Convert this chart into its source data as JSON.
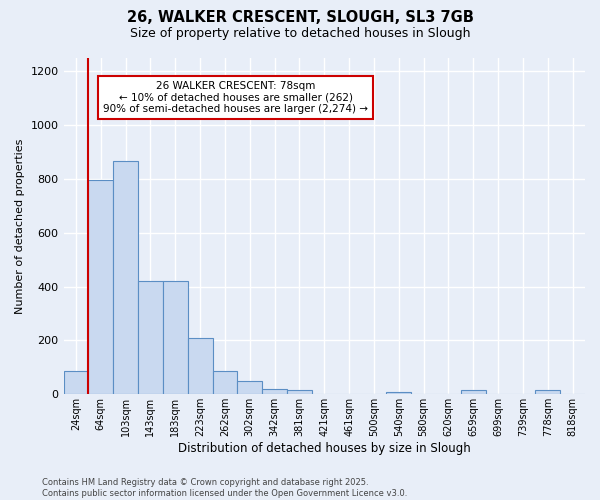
{
  "title": "26, WALKER CRESCENT, SLOUGH, SL3 7GB",
  "subtitle": "Size of property relative to detached houses in Slough",
  "xlabel": "Distribution of detached houses by size in Slough",
  "ylabel": "Number of detached properties",
  "bar_labels": [
    "24sqm",
    "64sqm",
    "103sqm",
    "143sqm",
    "183sqm",
    "223sqm",
    "262sqm",
    "302sqm",
    "342sqm",
    "381sqm",
    "421sqm",
    "461sqm",
    "500sqm",
    "540sqm",
    "580sqm",
    "620sqm",
    "659sqm",
    "699sqm",
    "739sqm",
    "778sqm",
    "818sqm"
  ],
  "bar_values": [
    85,
    795,
    865,
    420,
    420,
    210,
    85,
    50,
    20,
    15,
    0,
    0,
    0,
    10,
    0,
    0,
    15,
    0,
    0,
    15,
    0
  ],
  "bar_color": "#c9d9f0",
  "bar_edge_color": "#5b8ec4",
  "vline_x_index": 1,
  "vline_color": "#cc0000",
  "annotation_text": "26 WALKER CRESCENT: 78sqm\n← 10% of detached houses are smaller (262)\n90% of semi-detached houses are larger (2,274) →",
  "annotation_box_color": "#ffffff",
  "annotation_box_edge": "#cc0000",
  "ylim": [
    0,
    1250
  ],
  "yticks": [
    0,
    200,
    400,
    600,
    800,
    1000,
    1200
  ],
  "background_color": "#e8eef8",
  "grid_color": "#ffffff",
  "footer_line1": "Contains HM Land Registry data © Crown copyright and database right 2025.",
  "footer_line2": "Contains public sector information licensed under the Open Government Licence v3.0."
}
